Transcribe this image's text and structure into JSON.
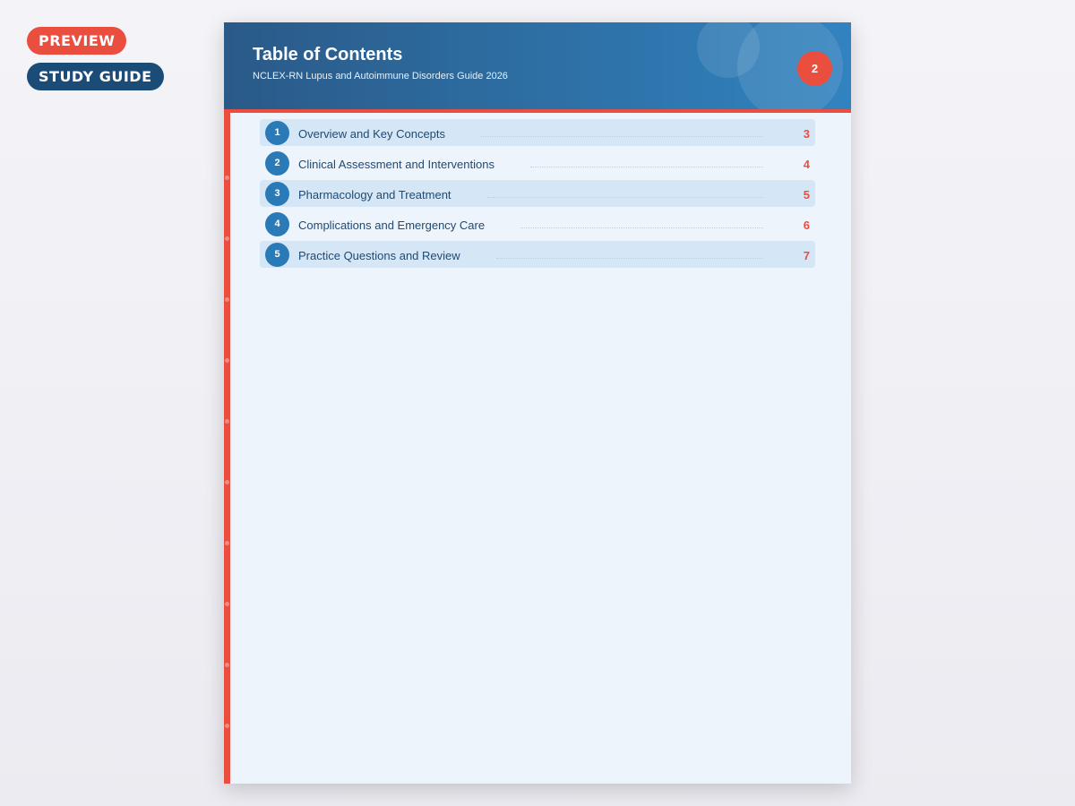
{
  "badges": {
    "preview": "PREVIEW",
    "study_guide": "STUDY GUIDE"
  },
  "header": {
    "title": "Table of Contents",
    "subtitle": "NCLEX-RN Lupus and Autoimmune Disorders Guide 2026",
    "page_number": "2"
  },
  "toc": [
    {
      "num": "1",
      "label": "Overview and Key Concepts",
      "page": "3"
    },
    {
      "num": "2",
      "label": "Clinical Assessment and Interventions",
      "page": "4"
    },
    {
      "num": "3",
      "label": "Pharmacology and Treatment",
      "page": "5"
    },
    {
      "num": "4",
      "label": "Complications and Emergency Care",
      "page": "6"
    },
    {
      "num": "5",
      "label": "Practice Questions and Review",
      "page": "7"
    }
  ],
  "colors": {
    "accent": "#e94e3e",
    "brand": "#1b4c78",
    "header_start": "#2a5a88",
    "header_end": "#3183c0"
  }
}
